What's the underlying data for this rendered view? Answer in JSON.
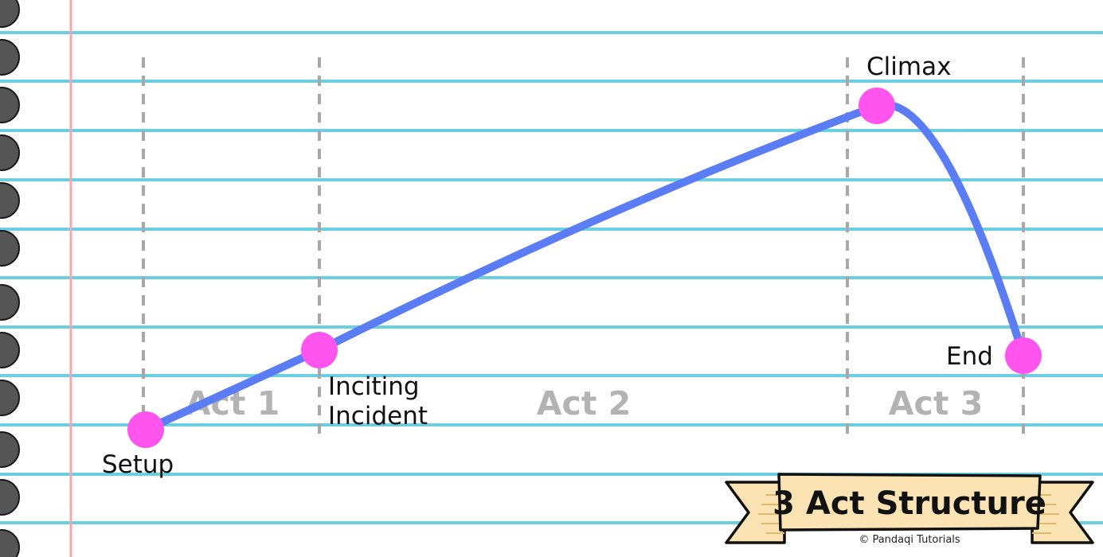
{
  "colors": {
    "ruled_line": "#6ccfe0",
    "margin_line": "#f2a6ad",
    "binder_hole": "#555555",
    "curve": "#5a7cf5",
    "point": "#ff55ee",
    "divider": "#a8a8a8",
    "act_label": "#b3b3b3",
    "banner_fill": "#fbe3b3",
    "banner_stroke": "#111111"
  },
  "points": [
    {
      "id": "setup",
      "label": "Setup"
    },
    {
      "id": "inciting",
      "label_lines": [
        "Inciting",
        "Incident"
      ]
    },
    {
      "id": "climax",
      "label": "Climax"
    },
    {
      "id": "end",
      "label": "End"
    }
  ],
  "acts": [
    {
      "id": "act1",
      "label": "Act 1"
    },
    {
      "id": "act2",
      "label": "Act 2"
    },
    {
      "id": "act3",
      "label": "Act 3"
    }
  ],
  "banner": {
    "title": "3 Act Structure",
    "credit": "© Pandaqi Tutorials"
  }
}
